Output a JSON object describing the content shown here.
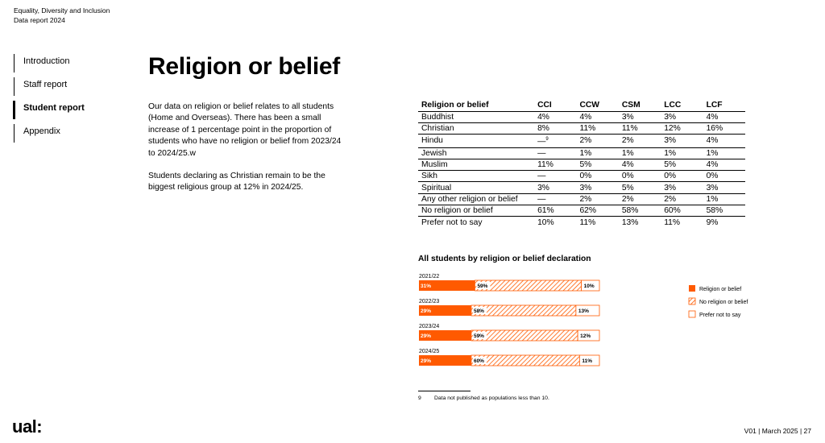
{
  "header": {
    "line1": "Equality, Diversity and Inclusion",
    "line2": "Data report 2024"
  },
  "nav": {
    "items": [
      {
        "label": "Introduction",
        "active": false
      },
      {
        "label": "Staff report",
        "active": false
      },
      {
        "label": "Student report",
        "active": true
      },
      {
        "label": "Appendix",
        "active": false
      }
    ]
  },
  "page_title": "Religion or belief",
  "body": {
    "p1": "Our data on religion or belief relates to all students (Home and Overseas). There has been a small increase of 1 percentage point in the proportion of students who have no religion or belief from 2023/24 to 2024/25.w",
    "p2": "Students declaring as Christian remain to be the biggest religious group at 12% in 2024/25."
  },
  "table": {
    "headers": [
      "Religion or belief",
      "CCI",
      "CCW",
      "CSM",
      "LCC",
      "LCF"
    ],
    "rows": [
      [
        "Buddhist",
        "4%",
        "4%",
        "3%",
        "3%",
        "4%"
      ],
      [
        "Christian",
        "8%",
        "11%",
        "11%",
        "12%",
        "16%"
      ],
      [
        "Hindu",
        "—",
        "2%",
        "2%",
        "3%",
        "4%"
      ],
      [
        "Jewish",
        "—",
        "1%",
        "1%",
        "1%",
        "1%"
      ],
      [
        "Muslim",
        "11%",
        "5%",
        "4%",
        "5%",
        "4%"
      ],
      [
        "Sikh",
        "—",
        "0%",
        "0%",
        "0%",
        "0%"
      ],
      [
        "Spiritual",
        "3%",
        "3%",
        "5%",
        "3%",
        "3%"
      ],
      [
        "Any other religion or belief",
        "—",
        "2%",
        "2%",
        "2%",
        "1%"
      ],
      [
        "No religion or belief",
        "61%",
        "62%",
        "58%",
        "60%",
        "58%"
      ],
      [
        "Prefer not to say",
        "10%",
        "11%",
        "13%",
        "11%",
        "9%"
      ]
    ],
    "hindu_cci_footnote_ref": "9"
  },
  "chart_data": {
    "type": "bar",
    "orientation": "horizontal",
    "stacked": true,
    "percent": true,
    "title": "All students by religion or belief declaration",
    "categories": [
      "2021/22",
      "2022/23",
      "2023/24",
      "2024/25"
    ],
    "series": [
      {
        "name": "Religion or belief",
        "values": [
          31,
          29,
          29,
          29
        ],
        "labels": [
          "31%",
          "29%",
          "29%",
          "29%"
        ],
        "color": "#ff5a00",
        "pattern": "solid"
      },
      {
        "name": "No religion or belief",
        "values": [
          59,
          58,
          59,
          60
        ],
        "labels": [
          "59%",
          "58%",
          "59%",
          "60%"
        ],
        "color": "#ff5a00",
        "pattern": "hatched"
      },
      {
        "name": "Prefer not to say",
        "values": [
          10,
          13,
          12,
          11
        ],
        "labels": [
          "10%",
          "13%",
          "12%",
          "11%"
        ],
        "color": "#ffffff",
        "pattern": "outline"
      }
    ],
    "legend_position": "right",
    "grid": false
  },
  "footnote": {
    "number": "9",
    "text": "Data not published as populations less than 10."
  },
  "logo_text": "ual:",
  "footer_text": "V01 | March 2025 | 27",
  "colors": {
    "accent": "#ff5a00",
    "text": "#000000",
    "background": "#ffffff"
  }
}
